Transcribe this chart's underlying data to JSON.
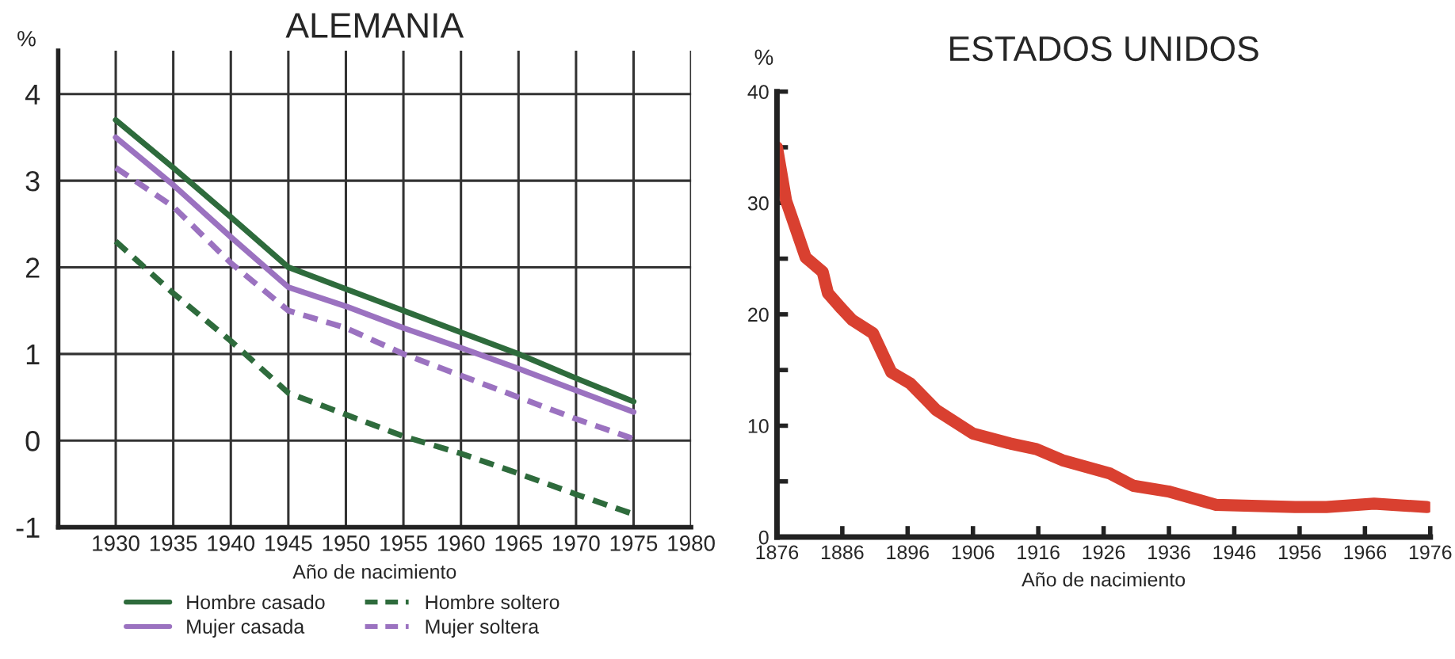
{
  "chart_data": [
    {
      "type": "line",
      "title": "ALEMANIA",
      "xlabel": "Año de nacimiento",
      "ylabel": "%",
      "x": [
        1930,
        1935,
        1940,
        1945,
        1950,
        1955,
        1960,
        1965,
        1970,
        1975
      ],
      "series": [
        {
          "name": "Hombre casado",
          "color": "#2e6b3c",
          "line_style": "solid",
          "values": [
            3.7,
            3.15,
            2.58,
            2.0,
            1.75,
            1.5,
            1.25,
            1.0,
            0.72,
            0.45
          ]
        },
        {
          "name": "Mujer casada",
          "color": "#9b72c0",
          "line_style": "solid",
          "values": [
            3.5,
            2.95,
            2.35,
            1.77,
            1.55,
            1.3,
            1.07,
            0.83,
            0.58,
            0.33
          ]
        },
        {
          "name": "Hombre soltero",
          "color": "#2e6b3c",
          "line_style": "dashed",
          "values": [
            2.3,
            1.7,
            1.15,
            0.55,
            0.3,
            0.05,
            -0.15,
            -0.38,
            -0.62,
            -0.85
          ]
        },
        {
          "name": "Mujer soltera",
          "color": "#9b72c0",
          "line_style": "dashed",
          "values": [
            3.15,
            2.7,
            2.05,
            1.5,
            1.3,
            1.0,
            0.75,
            0.5,
            0.25,
            0.02
          ]
        }
      ],
      "xlim": [
        1925,
        1980
      ],
      "xticks": [
        1930,
        1935,
        1940,
        1945,
        1950,
        1955,
        1960,
        1965,
        1970,
        1975,
        1980
      ],
      "ylim": [
        -1,
        4.5
      ],
      "yticks": [
        -1,
        0,
        1,
        2,
        3,
        4
      ],
      "grid": true,
      "legend": "bottom",
      "marker": "none"
    },
    {
      "type": "line",
      "title": "ESTADOS UNIDOS",
      "xlabel": "Año de nacimiento",
      "ylabel": "%",
      "series": [
        {
          "color": "#d94030",
          "line_style": "solid",
          "x": [
            1876,
            1877.4,
            1880.4,
            1883,
            1883.8,
            1885.9,
            1887.5,
            1890.7,
            1893.5,
            1896.4,
            1900.4,
            1906,
            1911.7,
            1915.7,
            1919.7,
            1927,
            1930.6,
            1935.9,
            1943.2,
            1955.3,
            1960.1,
            1967.4,
            1975.5
          ],
          "values": [
            35.0,
            30.2,
            25.1,
            23.8,
            21.9,
            20.5,
            19.5,
            18.3,
            14.8,
            13.8,
            11.4,
            9.3,
            8.4,
            7.9,
            6.9,
            5.7,
            4.6,
            4.1,
            2.9,
            2.7,
            2.7,
            3.0,
            2.7
          ]
        }
      ],
      "xlim": [
        1876,
        1976
      ],
      "xticks": [
        1876,
        1886,
        1896,
        1906,
        1916,
        1926,
        1936,
        1946,
        1956,
        1966,
        1976
      ],
      "ylim": [
        0,
        40
      ],
      "yticks": [
        0,
        {
          "value": 5,
          "label": null
        },
        10,
        {
          "value": 15,
          "label": null
        },
        20,
        {
          "value": 25,
          "label": null
        },
        30,
        {
          "value": 35,
          "label": null
        },
        40
      ],
      "grid": false,
      "legend": false,
      "marker": "none"
    }
  ]
}
